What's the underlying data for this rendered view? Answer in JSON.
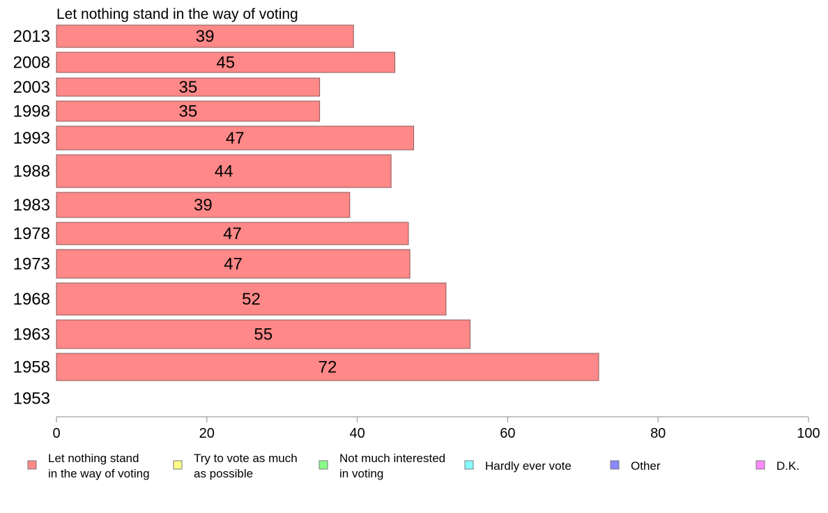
{
  "chart_data": {
    "type": "bar",
    "orientation": "horizontal",
    "title": "Let nothing stand in the way of voting",
    "categories": [
      "2013",
      "2008",
      "2003",
      "1998",
      "1993",
      "1988",
      "1983",
      "1978",
      "1973",
      "1968",
      "1963",
      "1958",
      "1953"
    ],
    "values": [
      39.5,
      45,
      35,
      35,
      47.5,
      44.5,
      39,
      46.8,
      47,
      51.8,
      55,
      72.1,
      null
    ],
    "value_labels": [
      "39",
      "45",
      "35",
      "35",
      "47",
      "44",
      "39",
      "47",
      "47",
      "52",
      "55",
      "72",
      ""
    ],
    "xlim": [
      0,
      100
    ],
    "xticks": [
      "0",
      "20",
      "40",
      "60",
      "80",
      "100"
    ],
    "grid": false,
    "legend_position": "bottom",
    "legend": [
      {
        "label_lines": [
          "Let nothing stand",
          "in the way of voting"
        ],
        "color": "#ff8888"
      },
      {
        "label_lines": [
          "Try to vote as much",
          "as possible"
        ],
        "color": "#ffff88"
      },
      {
        "label_lines": [
          "Not much interested",
          "in voting"
        ],
        "color": "#88ff88"
      },
      {
        "label_lines": [
          "Hardly ever vote"
        ],
        "color": "#88ffff"
      },
      {
        "label_lines": [
          "Other"
        ],
        "color": "#8888ff"
      },
      {
        "label_lines": [
          "D.K."
        ],
        "color": "#ff88ff"
      }
    ],
    "bar_color": "#ff8888"
  }
}
